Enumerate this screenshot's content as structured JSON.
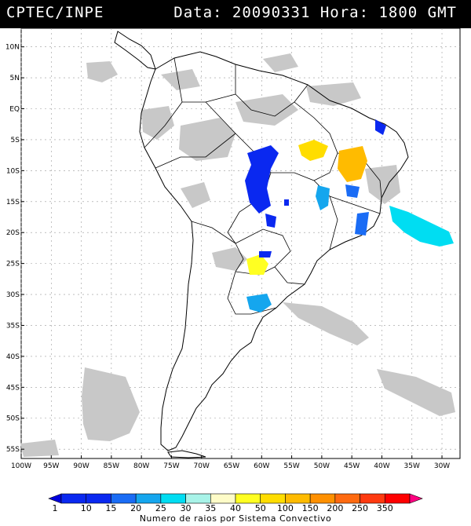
{
  "header": {
    "source_label": "CPTEC/INPE",
    "datetime_label": "Data: 20090331  Hora: 1800 GMT"
  },
  "map": {
    "lat_ticks": [
      {
        "value": 10,
        "label": "10N"
      },
      {
        "value": 5,
        "label": "5N"
      },
      {
        "value": 0,
        "label": "EQ"
      },
      {
        "value": -5,
        "label": "5S"
      },
      {
        "value": -10,
        "label": "10S"
      },
      {
        "value": -15,
        "label": "15S"
      },
      {
        "value": -20,
        "label": "20S"
      },
      {
        "value": -25,
        "label": "25S"
      },
      {
        "value": -30,
        "label": "30S"
      },
      {
        "value": -35,
        "label": "35S"
      },
      {
        "value": -40,
        "label": "40S"
      },
      {
        "value": -45,
        "label": "45S"
      },
      {
        "value": -50,
        "label": "50S"
      },
      {
        "value": -55,
        "label": "55S"
      }
    ],
    "lon_ticks": [
      {
        "value": -100,
        "label": "100W"
      },
      {
        "value": -95,
        "label": "95W"
      },
      {
        "value": -90,
        "label": "90W"
      },
      {
        "value": -85,
        "label": "85W"
      },
      {
        "value": -80,
        "label": "80W"
      },
      {
        "value": -75,
        "label": "75W"
      },
      {
        "value": -70,
        "label": "70W"
      },
      {
        "value": -65,
        "label": "65W"
      },
      {
        "value": -60,
        "label": "60W"
      },
      {
        "value": -55,
        "label": "55W"
      },
      {
        "value": -50,
        "label": "50W"
      },
      {
        "value": -45,
        "label": "45W"
      },
      {
        "value": -40,
        "label": "40W"
      },
      {
        "value": -35,
        "label": "35W"
      },
      {
        "value": -30,
        "label": "30W"
      }
    ],
    "colors": {
      "background": "#ffffff",
      "coastline": "#000000",
      "cloud_gray": "#c8c8c8",
      "grid": "#9a9a9a"
    }
  },
  "legend": {
    "caption": "Numero de raios por Sistema Convectivo",
    "bins": [
      {
        "label": "1",
        "color": "#0000dd"
      },
      {
        "label": "10",
        "color": "#0a28f0"
      },
      {
        "label": "15",
        "color": "#1a6cf5"
      },
      {
        "label": "20",
        "color": "#15a6ee"
      },
      {
        "label": "25",
        "color": "#00ddf2"
      },
      {
        "label": "30",
        "color": "#a8f3e8"
      },
      {
        "label": "35",
        "color": "#fefcc8"
      },
      {
        "label": "40",
        "color": "#ffff22"
      },
      {
        "label": "50",
        "color": "#ffdd00"
      },
      {
        "label": "100",
        "color": "#ffbb00"
      },
      {
        "label": "150",
        "color": "#ff9000"
      },
      {
        "label": "200",
        "color": "#ff6a10"
      },
      {
        "label": "250",
        "color": "#ff3a10"
      },
      {
        "label": "350",
        "color": "#ff0000"
      }
    ],
    "end_color": "#ff0080"
  },
  "convective_systems": [
    {
      "name": "central-brazil-cluster",
      "color": "#0a28f0"
    },
    {
      "name": "northeast-brazil-orange",
      "color": "#ffbb00"
    },
    {
      "name": "north-yellow",
      "color": "#ffdd00"
    },
    {
      "name": "atlantic-cyan",
      "color": "#00ddf2"
    },
    {
      "name": "paraguay-yellow",
      "color": "#ffff22"
    },
    {
      "name": "uruguay-lightblue",
      "color": "#15a6ee"
    }
  ]
}
